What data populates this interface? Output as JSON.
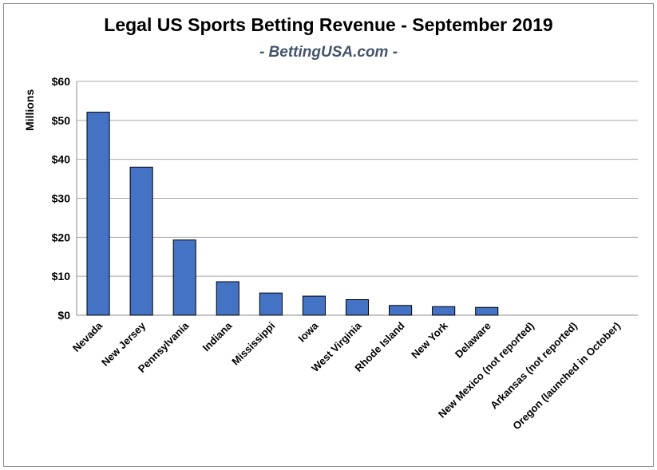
{
  "chart_data": {
    "type": "bar",
    "title": "Legal US Sports Betting Revenue - September 2019",
    "subtitle": "- BettingUSA.com -",
    "ylabel": "Millions",
    "xlabel": "",
    "ylim": [
      0,
      60
    ],
    "yticks": [
      "$0",
      "$10",
      "$20",
      "$30",
      "$40",
      "$50",
      "$60"
    ],
    "yticks_values": [
      0,
      10,
      20,
      30,
      40,
      50,
      60
    ],
    "grid": true,
    "legend": "none",
    "bar_color": "#4472c4",
    "categories": [
      "Nevada",
      "New Jersey",
      "Pennsylvania",
      "Indiana",
      "Mississippi",
      "Iowa",
      "West Virginia",
      "Rhode Island",
      "New York",
      "Delaware",
      "New Mexico (not reported)",
      "Arkansas (not reported)",
      "Oregon (launched in October)"
    ],
    "values": [
      52.1,
      38.0,
      19.3,
      8.6,
      5.7,
      4.9,
      4.0,
      2.5,
      2.2,
      2.0,
      null,
      null,
      null
    ]
  }
}
